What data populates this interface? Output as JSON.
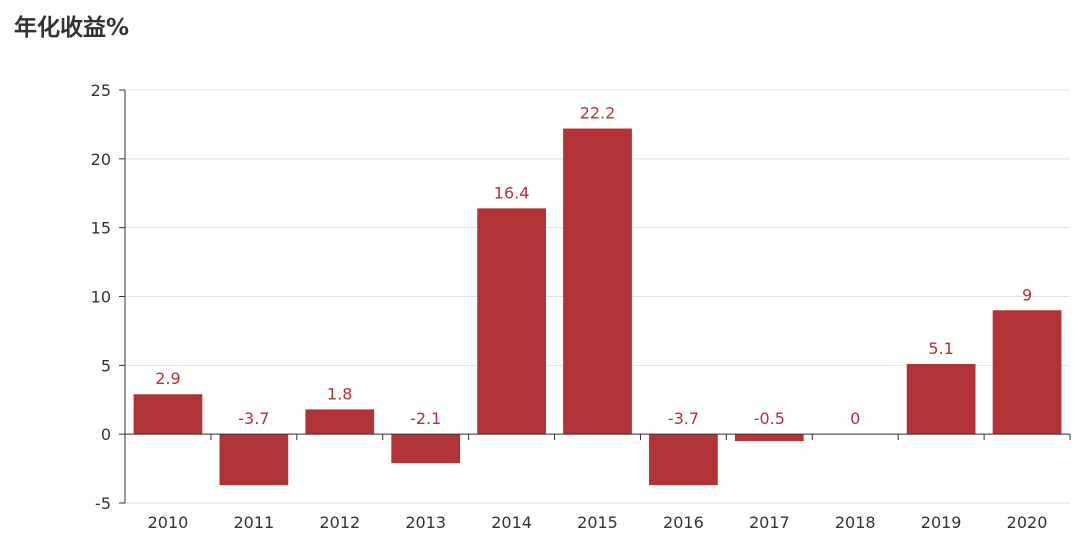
{
  "chart_data": {
    "type": "bar",
    "title": "年化收益%",
    "categories": [
      "2010",
      "2011",
      "2012",
      "2013",
      "2014",
      "2015",
      "2016",
      "2017",
      "2018",
      "2019",
      "2020"
    ],
    "values": [
      2.9,
      -3.7,
      1.8,
      -2.1,
      16.4,
      22.2,
      -3.7,
      -0.5,
      0,
      5.1,
      9
    ],
    "value_labels": [
      "2.9",
      "-3.7",
      "1.8",
      "-2.1",
      "16.4",
      "22.2",
      "-3.7",
      "-0.5",
      "0",
      "5.1",
      "9"
    ],
    "yticks": [
      "-5",
      "0",
      "5",
      "10",
      "15",
      "20",
      "25"
    ],
    "ylim": [
      -5,
      25
    ],
    "grid": true,
    "xlabel": "",
    "ylabel": "",
    "colors": {
      "bar": "#b23335",
      "label": "#b23335",
      "axis": "#333333",
      "grid": "#e3e3e3"
    }
  }
}
